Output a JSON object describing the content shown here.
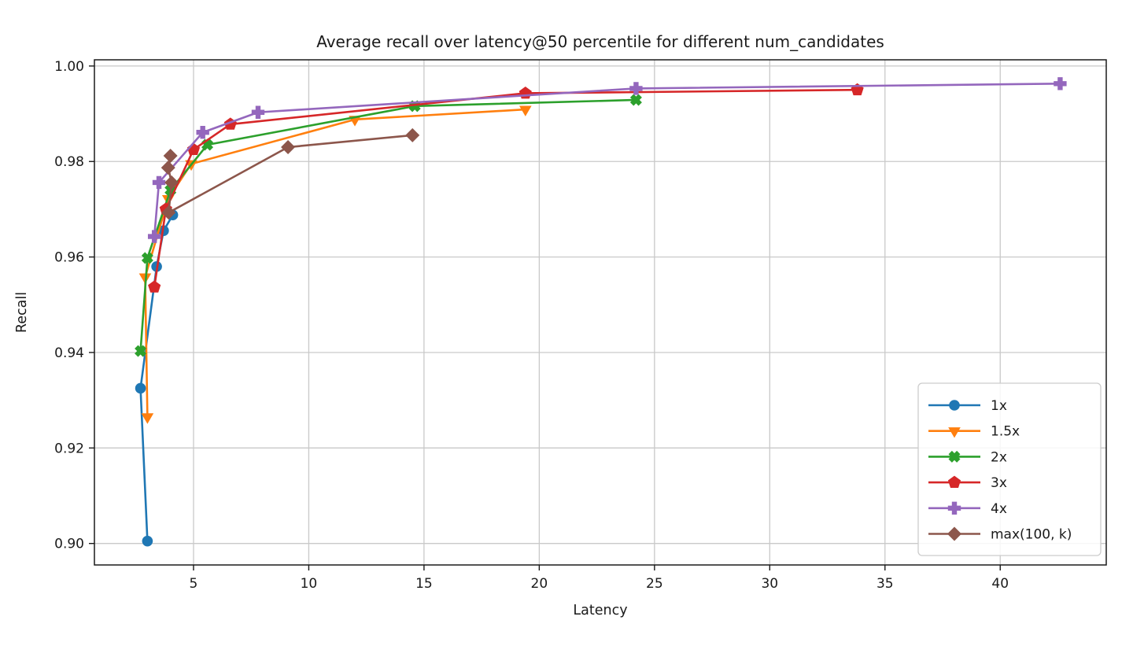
{
  "figure": {
    "background": "#ffffff",
    "text_color": "#1a1a1a"
  },
  "chart_data": {
    "type": "line",
    "title": "Average recall over latency@50 percentile for different num_candidates",
    "xlabel": "Latency",
    "ylabel": "Recall",
    "xlim": [
      0.7,
      44.6
    ],
    "ylim": [
      0.8955,
      1.0013
    ],
    "xticks": [
      5,
      10,
      15,
      20,
      25,
      30,
      35,
      40
    ],
    "yticks": [
      0.9,
      0.92,
      0.94,
      0.96,
      0.98,
      1.0
    ],
    "grid": true,
    "grid_color": "#c9c9c9",
    "spine_color": "#1a1a1a",
    "legend": {
      "position": "lower right",
      "border_color": "#cccccc",
      "background": "rgba(255,255,255,0.85)",
      "labels": [
        "1x",
        "1.5x",
        "2x",
        "3x",
        "4x",
        "max(100, k)"
      ]
    },
    "series": [
      {
        "name": "1x",
        "color": "#1f77b4",
        "marker": "circle",
        "points": [
          [
            3.0,
            0.9005
          ],
          [
            2.7,
            0.9325
          ],
          [
            3.4,
            0.958
          ],
          [
            3.7,
            0.9655
          ],
          [
            4.1,
            0.9688
          ]
        ]
      },
      {
        "name": "1.5x",
        "color": "#ff7f0e",
        "marker": "triangle-down",
        "points": [
          [
            3.0,
            0.9265
          ],
          [
            2.9,
            0.9558
          ],
          [
            3.9,
            0.9722
          ],
          [
            4.9,
            0.9795
          ],
          [
            12.0,
            0.9888
          ],
          [
            19.4,
            0.9909
          ]
        ]
      },
      {
        "name": "2x",
        "color": "#2ca02c",
        "marker": "x-filled",
        "points": [
          [
            2.7,
            0.9403
          ],
          [
            3.0,
            0.9598
          ],
          [
            4.0,
            0.974
          ],
          [
            5.6,
            0.9835
          ],
          [
            14.6,
            0.9916
          ],
          [
            24.2,
            0.9929
          ]
        ]
      },
      {
        "name": "3x",
        "color": "#d62728",
        "marker": "pentagon",
        "points": [
          [
            3.3,
            0.9537
          ],
          [
            3.8,
            0.97
          ],
          [
            5.0,
            0.9825
          ],
          [
            6.6,
            0.9878
          ],
          [
            19.4,
            0.9943
          ],
          [
            33.8,
            0.995
          ]
        ]
      },
      {
        "name": "4x",
        "color": "#9467bd",
        "marker": "plus-filled",
        "points": [
          [
            3.3,
            0.9643
          ],
          [
            3.5,
            0.9756
          ],
          [
            5.4,
            0.9861
          ],
          [
            7.8,
            0.9903
          ],
          [
            24.2,
            0.9953
          ],
          [
            42.6,
            0.9963
          ]
        ]
      },
      {
        "name": "max(100, k)",
        "color": "#8c564b",
        "marker": "diamond",
        "points": [
          [
            4.0,
            0.9812
          ],
          [
            3.9,
            0.9787
          ],
          [
            4.05,
            0.9756
          ],
          [
            3.92,
            0.9693
          ],
          [
            9.1,
            0.983
          ],
          [
            14.5,
            0.9855
          ]
        ]
      }
    ]
  }
}
